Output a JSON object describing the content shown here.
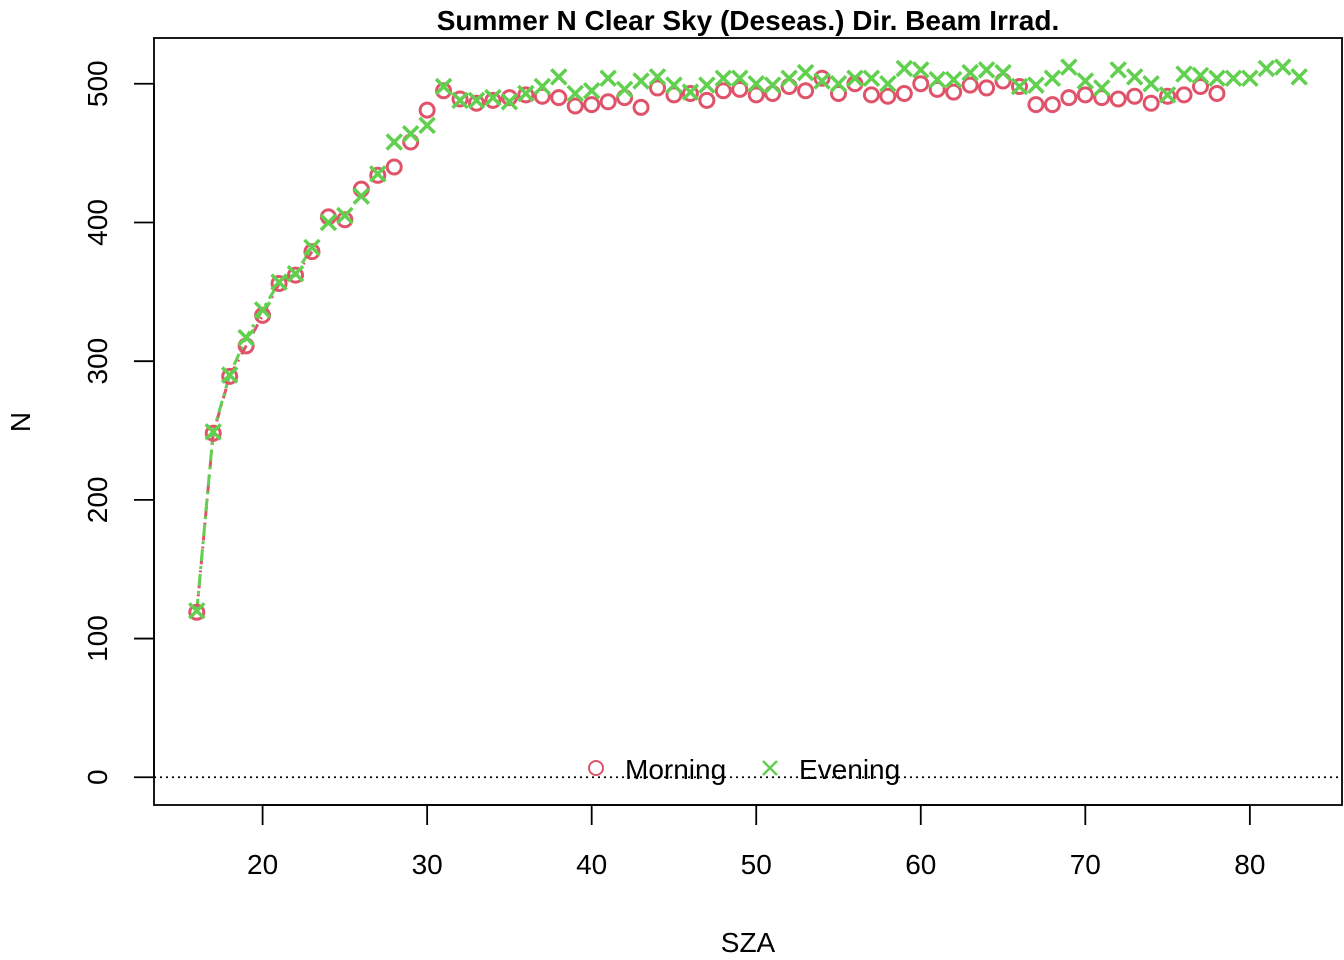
{
  "chart_data": {
    "type": "scatter",
    "title": "Summer N Clear Sky (Deseas.) Dir. Beam Irrad.",
    "xlabel": "SZA",
    "ylabel": "N",
    "xlim": [
      13.4,
      85.6
    ],
    "ylim": [
      -20,
      533
    ],
    "x_ticks": [
      20,
      30,
      40,
      50,
      60,
      70,
      80
    ],
    "y_ticks": [
      0,
      100,
      200,
      300,
      400,
      500
    ],
    "reference_line": {
      "y": 0,
      "style": "dotted"
    },
    "legend_position": "bottom-center",
    "grid": false,
    "series": [
      {
        "name": "Morning",
        "marker": "circle",
        "color": "#DF536B",
        "x": [
          16,
          17,
          18,
          19,
          20,
          21,
          22,
          23,
          24,
          25,
          26,
          27,
          28,
          29,
          30,
          31,
          32,
          33,
          34,
          35,
          36,
          37,
          38,
          39,
          40,
          41,
          42,
          43,
          44,
          45,
          46,
          47,
          48,
          49,
          50,
          51,
          52,
          53,
          54,
          55,
          56,
          57,
          58,
          59,
          60,
          61,
          62,
          63,
          64,
          65,
          66,
          67,
          68,
          69,
          70,
          71,
          72,
          73,
          74,
          75,
          76,
          77,
          78
        ],
        "y": [
          119,
          248,
          289,
          311,
          333,
          356,
          362,
          379,
          404,
          402,
          424,
          434,
          440,
          458,
          481,
          495,
          489,
          486,
          488,
          490,
          492,
          491,
          490,
          484,
          485,
          487,
          490,
          483,
          497,
          492,
          493,
          488,
          495,
          496,
          492,
          493,
          498,
          495,
          504,
          493,
          500,
          492,
          491,
          493,
          500,
          496,
          494,
          499,
          497,
          502,
          498,
          485,
          485,
          490,
          492,
          490,
          489,
          491,
          486,
          491,
          492,
          498,
          493
        ]
      },
      {
        "name": "Evening",
        "marker": "cross",
        "color": "#61D04F",
        "x": [
          16,
          17,
          18,
          19,
          20,
          21,
          22,
          23,
          24,
          25,
          26,
          27,
          28,
          29,
          30,
          31,
          32,
          33,
          34,
          35,
          36,
          37,
          38,
          39,
          40,
          41,
          42,
          43,
          44,
          45,
          46,
          47,
          48,
          49,
          50,
          51,
          52,
          53,
          54,
          55,
          56,
          57,
          58,
          59,
          60,
          61,
          62,
          63,
          64,
          65,
          66,
          67,
          68,
          69,
          70,
          71,
          72,
          73,
          74,
          75,
          76,
          77,
          78,
          79,
          80,
          81,
          82,
          83
        ],
        "y": [
          120,
          249,
          290,
          317,
          337,
          357,
          363,
          382,
          400,
          405,
          419,
          435,
          458,
          464,
          470,
          498,
          488,
          488,
          490,
          487,
          493,
          498,
          505,
          493,
          495,
          504,
          496,
          502,
          505,
          499,
          494,
          499,
          504,
          504,
          500,
          499,
          504,
          508,
          502,
          500,
          504,
          504,
          500,
          511,
          510,
          503,
          503,
          508,
          510,
          508,
          498,
          499,
          504,
          512,
          502,
          497,
          510,
          505,
          500,
          492,
          507,
          506,
          504,
          504,
          504,
          511,
          512,
          505
        ]
      }
    ]
  }
}
